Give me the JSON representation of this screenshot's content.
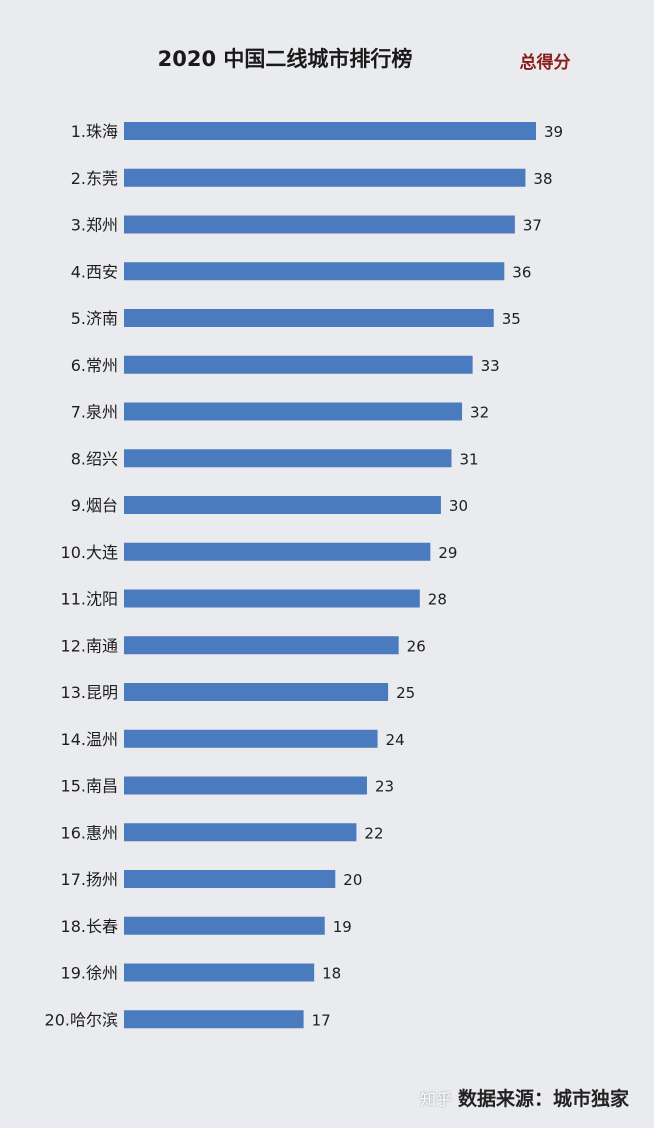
{
  "chart_data": {
    "type": "bar",
    "orientation": "horizontal",
    "title": "2020 中国二线城市排行榜",
    "legend_label": "总得分",
    "categories": [
      "1.珠海",
      "2.东莞",
      "3.郑州",
      "4.西安",
      "5.济南",
      "6.常州",
      "7.泉州",
      "8.绍兴",
      "9.烟台",
      "10.大连",
      "11.沈阳",
      "12.南通",
      "13.昆明",
      "14.温州",
      "15.南昌",
      "16.惠州",
      "17.扬州",
      "18.长春",
      "19.徐州",
      "20.哈尔滨"
    ],
    "values": [
      39,
      38,
      37,
      36,
      35,
      33,
      32,
      31,
      30,
      29,
      28,
      26,
      25,
      24,
      23,
      22,
      20,
      19,
      18,
      17
    ],
    "xlim": [
      0,
      39
    ],
    "grid": false,
    "bar_color": "#4a7bbf",
    "legend_color": "#8b1a1a"
  },
  "footer": {
    "watermark": "知乎",
    "source": "数据来源：城市独家"
  }
}
